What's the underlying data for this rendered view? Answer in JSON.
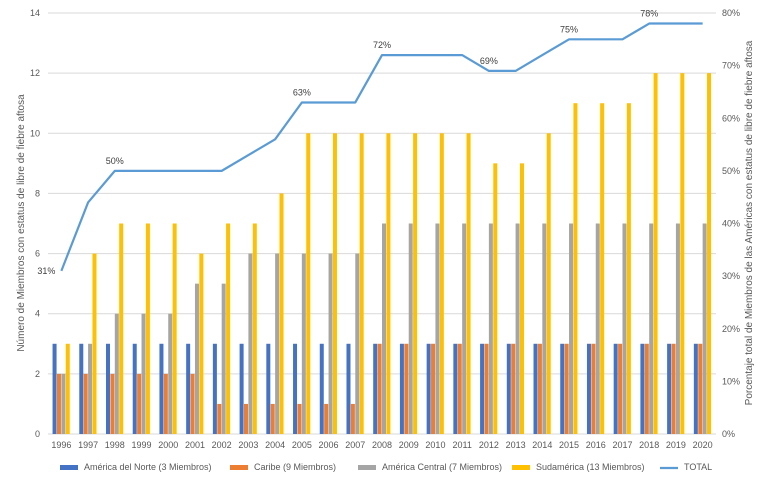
{
  "chart_data": {
    "type": "bar",
    "categories": [
      "1996",
      "1997",
      "1998",
      "1999",
      "2000",
      "2001",
      "2002",
      "2003",
      "2004",
      "2005",
      "2006",
      "2007",
      "2008",
      "2009",
      "2010",
      "2011",
      "2012",
      "2013",
      "2014",
      "2015",
      "2016",
      "2017",
      "2018",
      "2019",
      "2020"
    ],
    "series": [
      {
        "name": "América del Norte (3 Miembros)",
        "color": "#4472C4",
        "values": [
          3,
          3,
          3,
          3,
          3,
          3,
          3,
          3,
          3,
          3,
          3,
          3,
          3,
          3,
          3,
          3,
          3,
          3,
          3,
          3,
          3,
          3,
          3,
          3,
          3
        ]
      },
      {
        "name": "Caribe (9 Miembros)",
        "color": "#ED7D31",
        "values": [
          2,
          2,
          2,
          2,
          2,
          2,
          1,
          1,
          1,
          1,
          1,
          1,
          3,
          3,
          3,
          3,
          3,
          3,
          3,
          3,
          3,
          3,
          3,
          3,
          3
        ]
      },
      {
        "name": "América Central (7 Miembros)",
        "color": "#A5A5A5",
        "values": [
          2,
          3,
          4,
          4,
          4,
          5,
          5,
          6,
          6,
          6,
          6,
          6,
          7,
          7,
          7,
          7,
          7,
          7,
          7,
          7,
          7,
          7,
          7,
          7,
          7
        ]
      },
      {
        "name": "Sudamérica (13 Miembros)",
        "color": "#FFC000",
        "values": [
          3,
          6,
          7,
          7,
          7,
          6,
          7,
          7,
          8,
          10,
          10,
          10,
          10,
          10,
          10,
          10,
          9,
          9,
          10,
          11,
          11,
          11,
          12,
          12,
          12
        ]
      }
    ],
    "line": {
      "name": "TOTAL",
      "color": "#5B9BD5",
      "axis": "right",
      "values": [
        31,
        44,
        50,
        50,
        50,
        50,
        50,
        53,
        56,
        63,
        63,
        63,
        72,
        72,
        72,
        72,
        69,
        69,
        72,
        75,
        75,
        75,
        78,
        78,
        78
      ]
    },
    "line_labels": [
      {
        "index": 0,
        "text": "31%"
      },
      {
        "index": 2,
        "text": "50%"
      },
      {
        "index": 9,
        "text": "63%"
      },
      {
        "index": 12,
        "text": "72%"
      },
      {
        "index": 16,
        "text": "69%"
      },
      {
        "index": 19,
        "text": "75%"
      },
      {
        "index": 22,
        "text": "78%"
      }
    ],
    "ylabel": "Número de Miembros con estatus de libre de fiebre aftosa",
    "y2label": "Porcentaje total de Miembros de las Américas con estatus de libre de fiebre aftosa",
    "ylim": [
      0,
      14
    ],
    "y_ticks": [
      "0",
      "2",
      "4",
      "6",
      "8",
      "10",
      "12",
      "14"
    ],
    "y2lim": [
      0,
      80
    ],
    "y2_ticks": [
      "0%",
      "10%",
      "20%",
      "30%",
      "40%",
      "50%",
      "60%",
      "70%",
      "80%"
    ],
    "grid": true,
    "legend": {
      "position": "bottom",
      "items": [
        "América del Norte (3 Miembros)",
        "Caribe (9 Miembros)",
        "América Central (7 Miembros)",
        "Sudamérica (13 Miembros)",
        "TOTAL"
      ]
    }
  }
}
